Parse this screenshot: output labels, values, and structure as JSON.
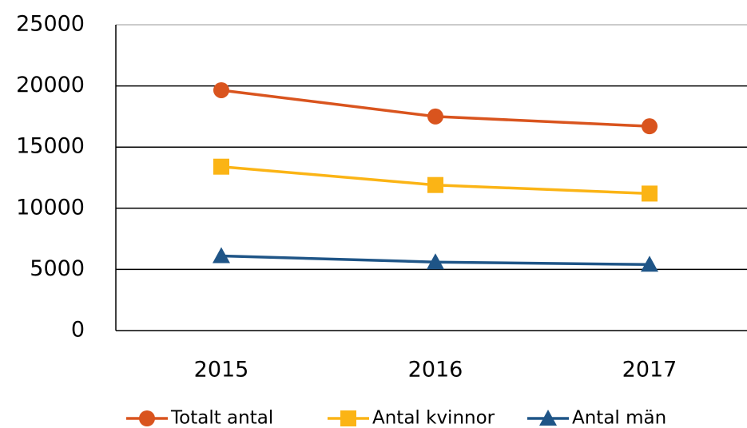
{
  "chart_data": {
    "type": "line",
    "categories": [
      "2015",
      "2016",
      "2017"
    ],
    "series": [
      {
        "name": "Totalt antal",
        "color": "#d9541e",
        "marker": "circle",
        "values": [
          19650,
          17500,
          16700
        ]
      },
      {
        "name": "Antal kvinnor",
        "color": "#fbb415",
        "marker": "square",
        "values": [
          13400,
          11900,
          11200
        ]
      },
      {
        "name": "Antal män",
        "color": "#1f5587",
        "marker": "triangle",
        "values": [
          6100,
          5600,
          5400
        ]
      }
    ],
    "ylim": [
      0,
      25000
    ],
    "yticks": [
      0,
      5000,
      10000,
      15000,
      20000,
      25000
    ],
    "grid": true,
    "legend": "bottom"
  }
}
